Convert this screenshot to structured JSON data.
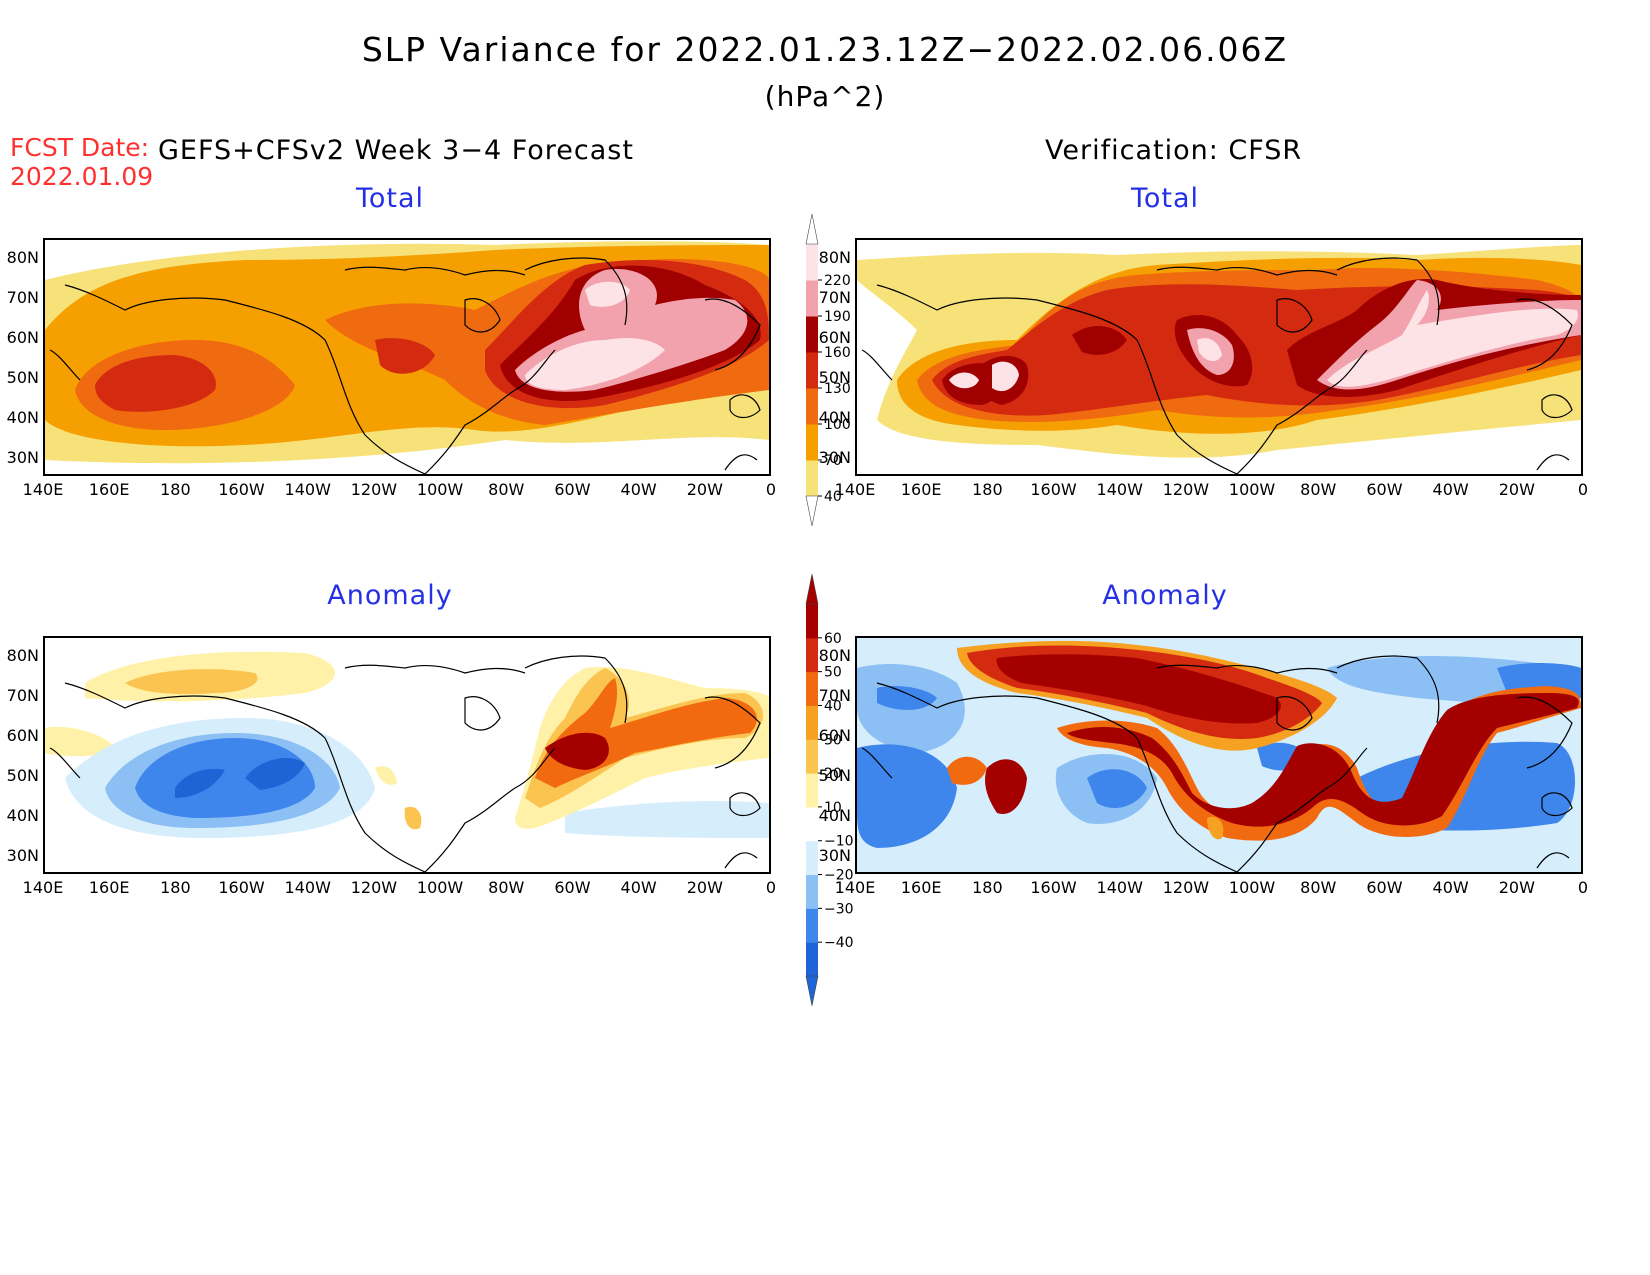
{
  "header": {
    "title": "SLP Variance for 2022.01.23.12Z−2022.02.06.06Z",
    "units": "(hPa^2)",
    "fcst_label": "FCST Date:",
    "fcst_date": "2022.01.09",
    "forecast_heading": "GEFS+CFSv2 Week 3−4 Forecast",
    "verification_heading": "Verification: CFSR"
  },
  "panels": {
    "forecast_total_title": "Total",
    "verification_total_title": "Total",
    "forecast_anomaly_title": "Anomaly",
    "verification_anomaly_title": "Anomaly"
  },
  "axes": {
    "lat_labels": [
      "80N",
      "70N",
      "60N",
      "50N",
      "40N",
      "30N"
    ],
    "lon_labels": [
      "140E",
      "160E",
      "180",
      "160W",
      "140W",
      "120W",
      "100W",
      "80W",
      "60W",
      "40W",
      "20W",
      "0"
    ]
  },
  "colorbars": {
    "total": {
      "levels": [
        "40",
        "70",
        "100",
        "130",
        "160",
        "190",
        "220"
      ],
      "colors": [
        "#f7e27a",
        "#f5a000",
        "#f06a10",
        "#d42a10",
        "#a00000",
        "#f2a2ac",
        "#fde2e6"
      ]
    },
    "anomaly": {
      "levels": [
        "−40",
        "−30",
        "−20",
        "−10",
        "10",
        "20",
        "30",
        "40",
        "50",
        "60"
      ],
      "colors": [
        "#1f64d6",
        "#3e86ec",
        "#8cc0f5",
        "#d6eefc",
        "#ffffff",
        "#fff2a8",
        "#fbc450",
        "#f6a122",
        "#f26a10",
        "#d42a10",
        "#a40000"
      ]
    }
  }
}
